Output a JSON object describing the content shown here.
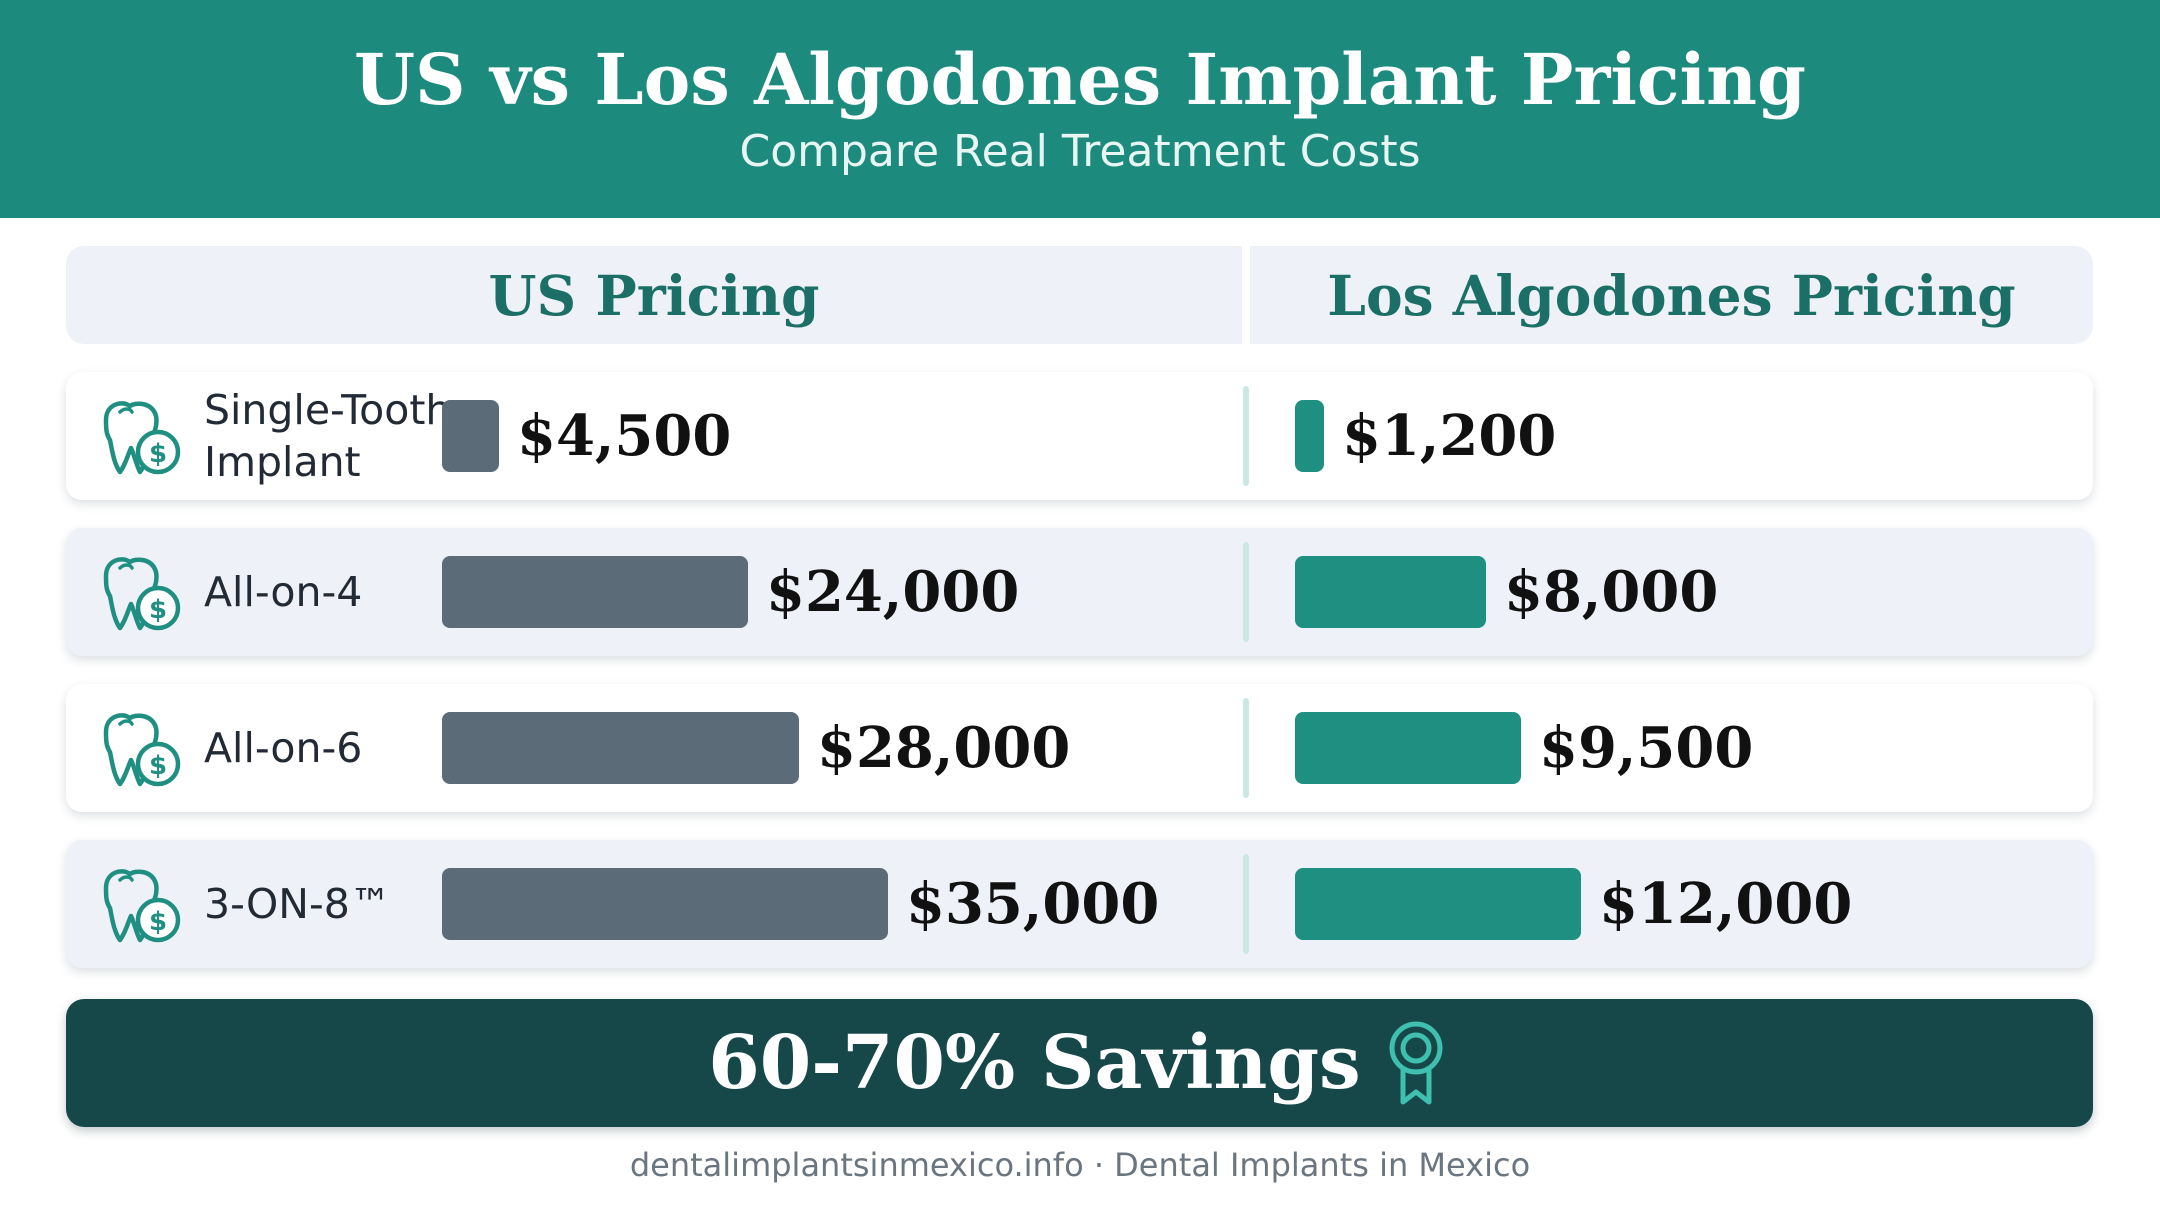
{
  "header": {
    "title": "US vs Los Algodones Implant Pricing",
    "subtitle": "Compare Real Treatment Costs"
  },
  "columns": {
    "us": "US Pricing",
    "la": "Los Algodones Pricing"
  },
  "rows": [
    {
      "label": "Single-Tooth Implant",
      "us_price": "$4,500",
      "la_price": "$1,200",
      "icon": "tooth-dollar-icon"
    },
    {
      "label": "All-on-4",
      "us_price": "$24,000",
      "la_price": "$8,000",
      "icon": "tooth-dollar-icon"
    },
    {
      "label": "All-on-6",
      "us_price": "$28,000",
      "la_price": "$9,500",
      "icon": "tooth-dollar-icon"
    },
    {
      "label": "3-ON-8™",
      "us_price": "$35,000",
      "la_price": "$12,000",
      "icon": "tooth-dollar-icon"
    }
  ],
  "chart_data": {
    "type": "bar",
    "categories": [
      "Single-Tooth Implant",
      "All-on-4",
      "All-on-6",
      "3-ON-8™"
    ],
    "series": [
      {
        "name": "US Pricing",
        "values": [
          4500,
          24000,
          28000,
          35000
        ]
      },
      {
        "name": "Los Algodones Pricing",
        "values": [
          1200,
          8000,
          9500,
          12000
        ]
      }
    ],
    "title": "US vs Los Algodones Implant Pricing",
    "subtitle": "Compare Real Treatment Costs",
    "colors": {
      "us": "#5b6b77",
      "la": "#1f8f82"
    }
  },
  "savings": {
    "text": "60-70% Savings",
    "icon": "award-ribbon-icon"
  },
  "footer": "dentalimplantsinmexico.info · Dental Implants in Mexico",
  "colors": {
    "header_bg": "#1d8a7e",
    "accent": "#1b6f66",
    "savings_bg": "#16484a"
  }
}
